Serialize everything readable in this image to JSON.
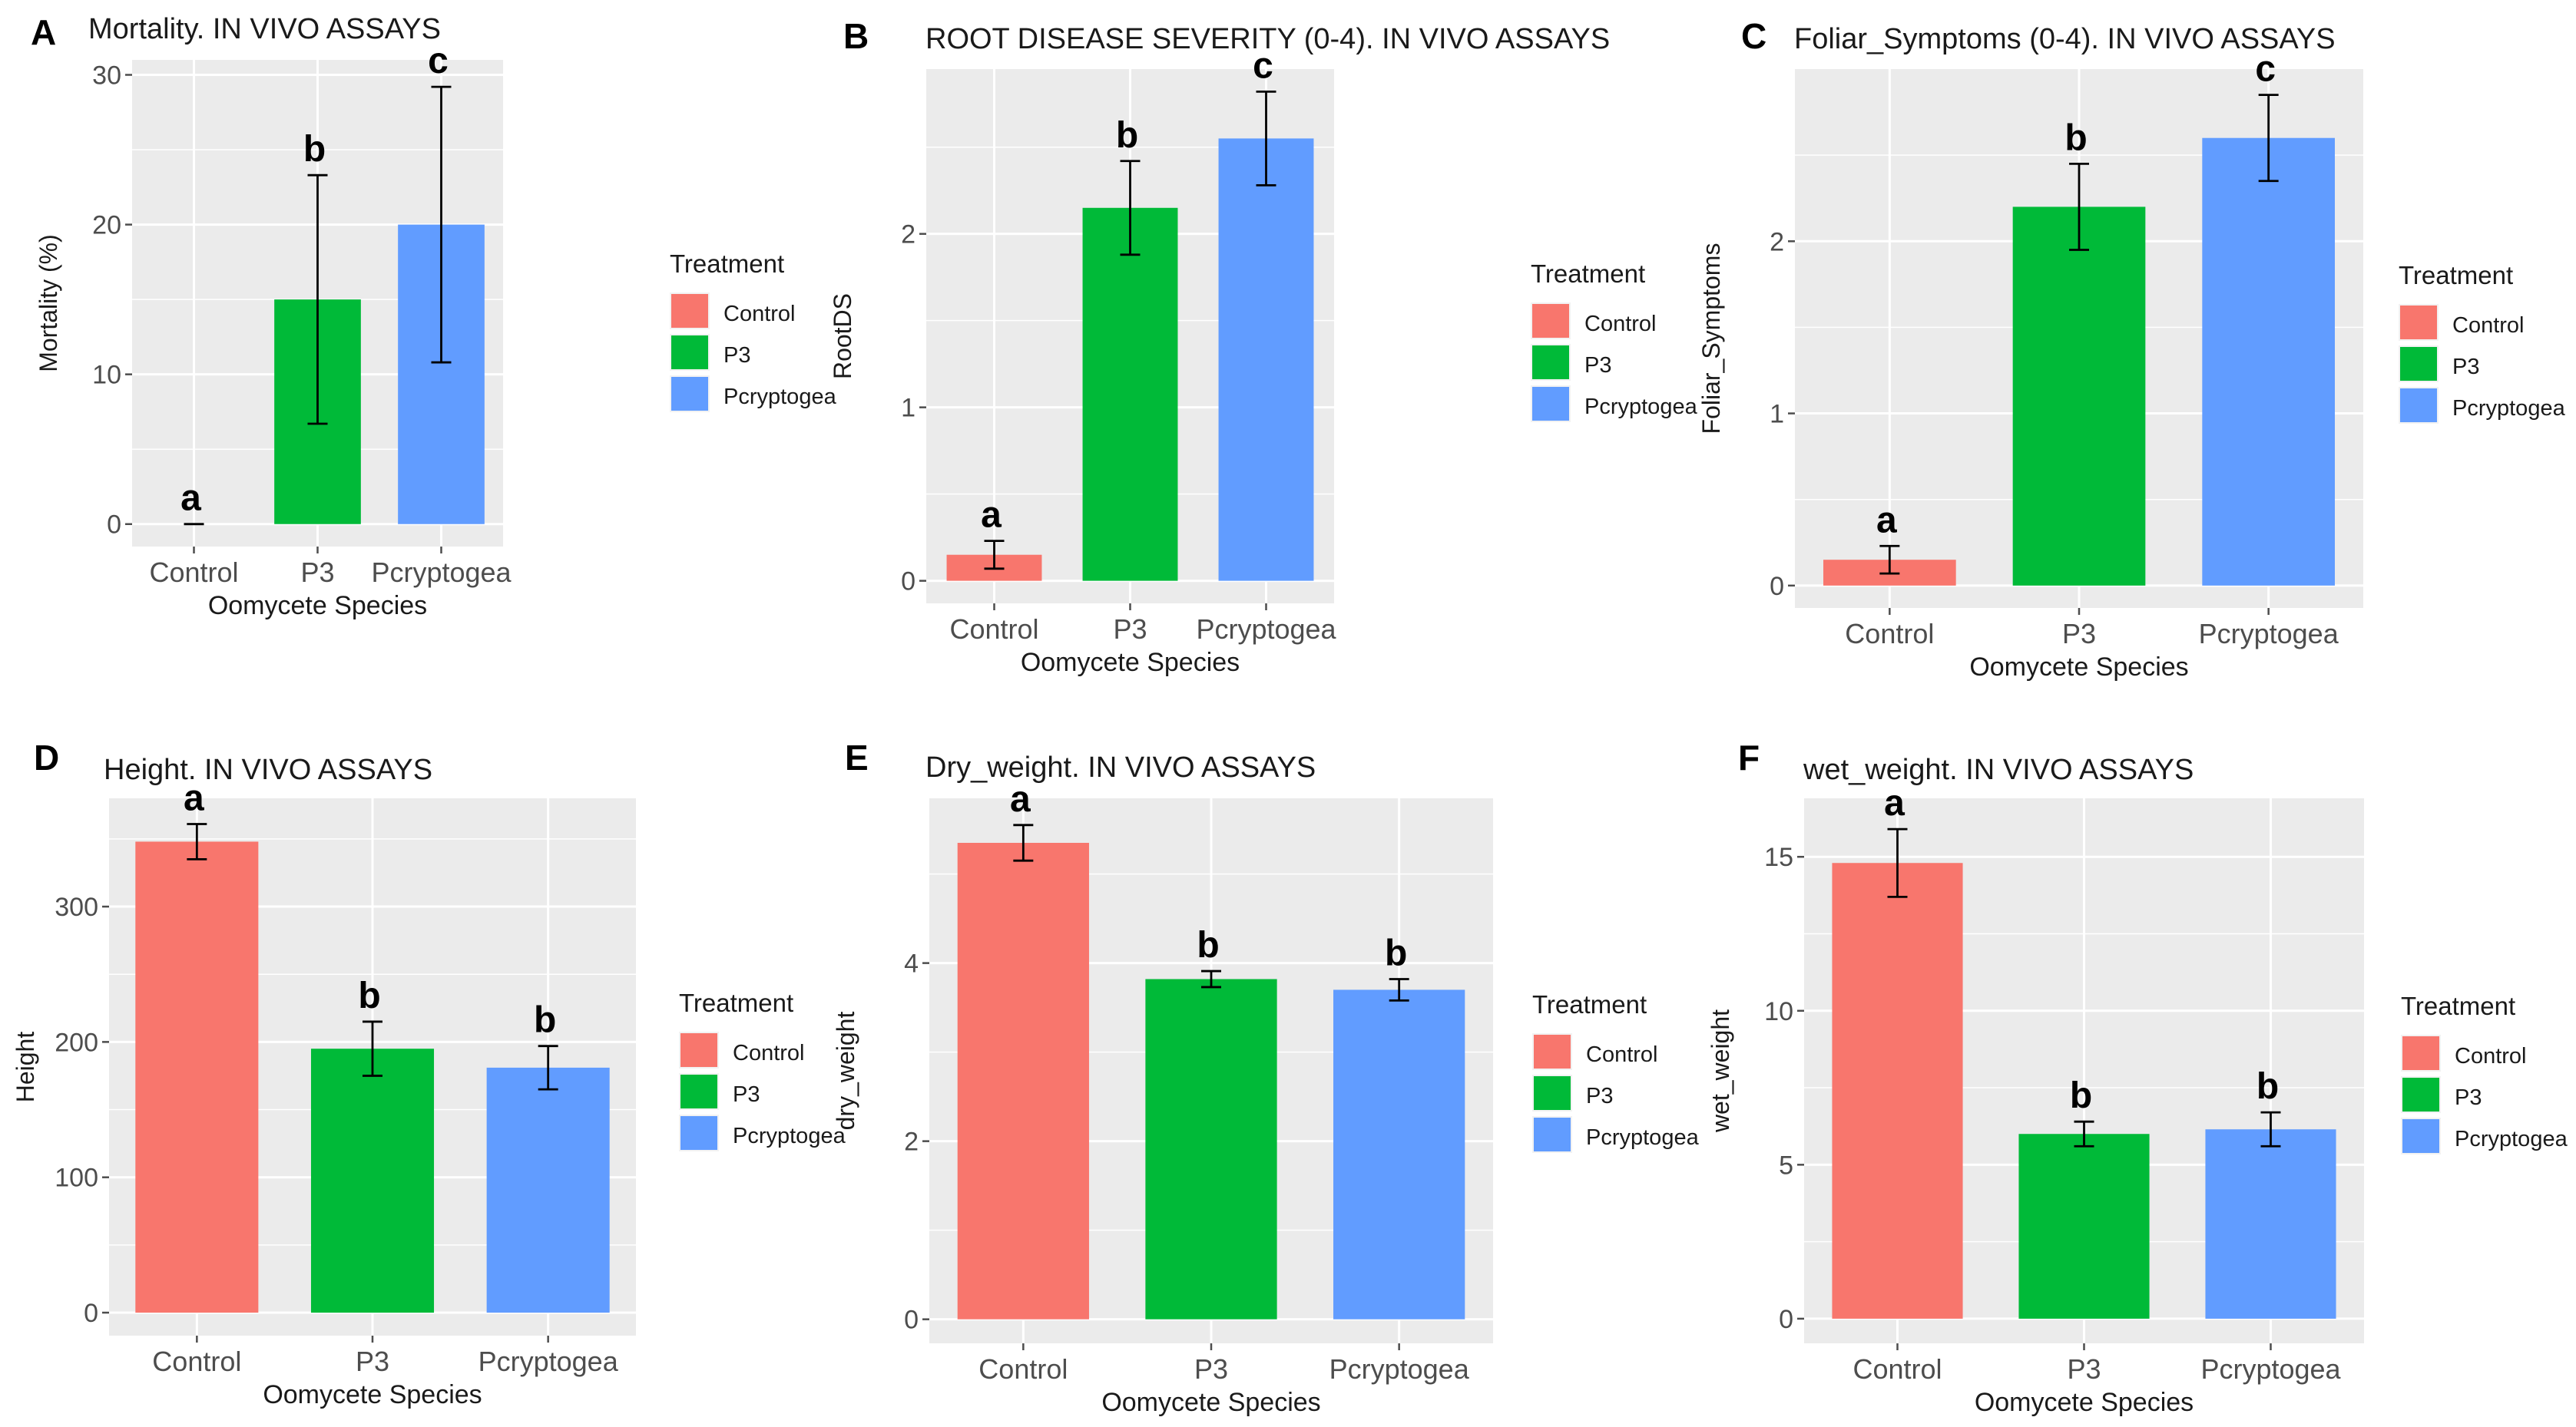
{
  "figure": {
    "x_axis_title": "Oomycete Species",
    "legend_title": "Treatment",
    "colors": {
      "Control": "#F8766D",
      "P3": "#00BA38",
      "Pcryptogea": "#619CFF"
    },
    "panel_bg": "#EBEBEB",
    "grid_color": "#FFFFFF"
  },
  "chart_data": [
    {
      "type": "bar",
      "panel": "A",
      "title": "Mortality. IN VIVO ASSAYS",
      "xlabel": "Oomycete Species",
      "ylabel": "Mortality (%)",
      "categories": [
        "Control",
        "P3",
        "Pcryptogea"
      ],
      "values": [
        0,
        15,
        20
      ],
      "err_low": [
        0,
        6.7,
        10.8
      ],
      "err_high": [
        0,
        23.3,
        29.2
      ],
      "letters": [
        "a",
        "b",
        "c"
      ],
      "ylim": [
        -1.5,
        31
      ],
      "yticks": [
        0,
        10,
        20,
        30
      ],
      "ytick_labels": [
        "0",
        "10",
        "20",
        "30"
      ],
      "legend": {
        "title": "Treatment",
        "entries": [
          "Control",
          "P3",
          "Pcryptogea"
        ]
      }
    },
    {
      "type": "bar",
      "panel": "B",
      "title": "ROOT DISEASE SEVERITY (0-4). IN VIVO ASSAYS",
      "xlabel": "Oomycete Species",
      "ylabel": "RootDS",
      "categories": [
        "Control",
        "P3",
        "Pcryptogea"
      ],
      "values": [
        0.15,
        2.15,
        2.55
      ],
      "err_low": [
        0.07,
        1.88,
        2.28
      ],
      "err_high": [
        0.23,
        2.42,
        2.82
      ],
      "letters": [
        "a",
        "b",
        "c"
      ],
      "ylim": [
        -0.13,
        2.95
      ],
      "yticks": [
        0,
        1,
        2
      ],
      "ytick_labels": [
        "0",
        "1",
        "2"
      ],
      "legend": {
        "title": "Treatment",
        "entries": [
          "Control",
          "P3",
          "Pcryptogea"
        ]
      }
    },
    {
      "type": "bar",
      "panel": "C",
      "title": "Foliar_Symptoms (0-4). IN VIVO ASSAYS",
      "xlabel": "Oomycete Species",
      "ylabel": "Foliar_Symptoms",
      "categories": [
        "Control",
        "P3",
        "Pcryptogea"
      ],
      "values": [
        0.15,
        2.2,
        2.6
      ],
      "err_low": [
        0.07,
        1.95,
        2.35
      ],
      "err_high": [
        0.23,
        2.45,
        2.85
      ],
      "letters": [
        "a",
        "b",
        "c"
      ],
      "ylim": [
        -0.13,
        3.0
      ],
      "yticks": [
        0,
        1,
        2
      ],
      "ytick_labels": [
        "0",
        "1",
        "2"
      ],
      "legend": {
        "title": "Treatment",
        "entries": [
          "Control",
          "P3",
          "Pcryptogea"
        ]
      }
    },
    {
      "type": "bar",
      "panel": "D",
      "title": "Height. IN VIVO ASSAYS",
      "xlabel": "Oomycete Species",
      "ylabel": "Height",
      "categories": [
        "Control",
        "P3",
        "Pcryptogea"
      ],
      "values": [
        348,
        195,
        181
      ],
      "err_low": [
        335,
        175,
        165
      ],
      "err_high": [
        361,
        215,
        197
      ],
      "letters": [
        "a",
        "b",
        "b"
      ],
      "ylim": [
        -17,
        380
      ],
      "yticks": [
        0,
        100,
        200,
        300
      ],
      "ytick_labels": [
        "0",
        "100",
        "200",
        "300"
      ],
      "legend": {
        "title": "Treatment",
        "entries": [
          "Control",
          "P3",
          "Pcryptogea"
        ]
      }
    },
    {
      "type": "bar",
      "panel": "E",
      "title": "Dry_weight. IN VIVO ASSAYS",
      "xlabel": "Oomycete Species",
      "ylabel": "dry_weight",
      "categories": [
        "Control",
        "P3",
        "Pcryptogea"
      ],
      "values": [
        5.35,
        3.82,
        3.7
      ],
      "err_low": [
        5.15,
        3.73,
        3.58
      ],
      "err_high": [
        5.55,
        3.91,
        3.82
      ],
      "letters": [
        "a",
        "b",
        "b"
      ],
      "ylim": [
        -0.27,
        5.85
      ],
      "yticks": [
        0,
        2,
        4
      ],
      "ytick_labels": [
        "0",
        "2",
        "4"
      ],
      "legend": {
        "title": "Treatment",
        "entries": [
          "Control",
          "P3",
          "Pcryptogea"
        ]
      }
    },
    {
      "type": "bar",
      "panel": "F",
      "title": "wet_weight. IN VIVO ASSAYS",
      "xlabel": "Oomycete Species",
      "ylabel": "wet_weight",
      "categories": [
        "Control",
        "P3",
        "Pcryptogea"
      ],
      "values": [
        14.8,
        6.0,
        6.15
      ],
      "err_low": [
        13.7,
        5.6,
        5.6
      ],
      "err_high": [
        15.9,
        6.4,
        6.7
      ],
      "letters": [
        "a",
        "b",
        "b"
      ],
      "ylim": [
        -0.8,
        16.9
      ],
      "yticks": [
        0,
        5,
        10,
        15
      ],
      "ytick_labels": [
        "0",
        "5",
        "10",
        "15"
      ],
      "legend": {
        "title": "Treatment",
        "entries": [
          "Control",
          "P3",
          "Pcryptogea"
        ]
      }
    }
  ]
}
